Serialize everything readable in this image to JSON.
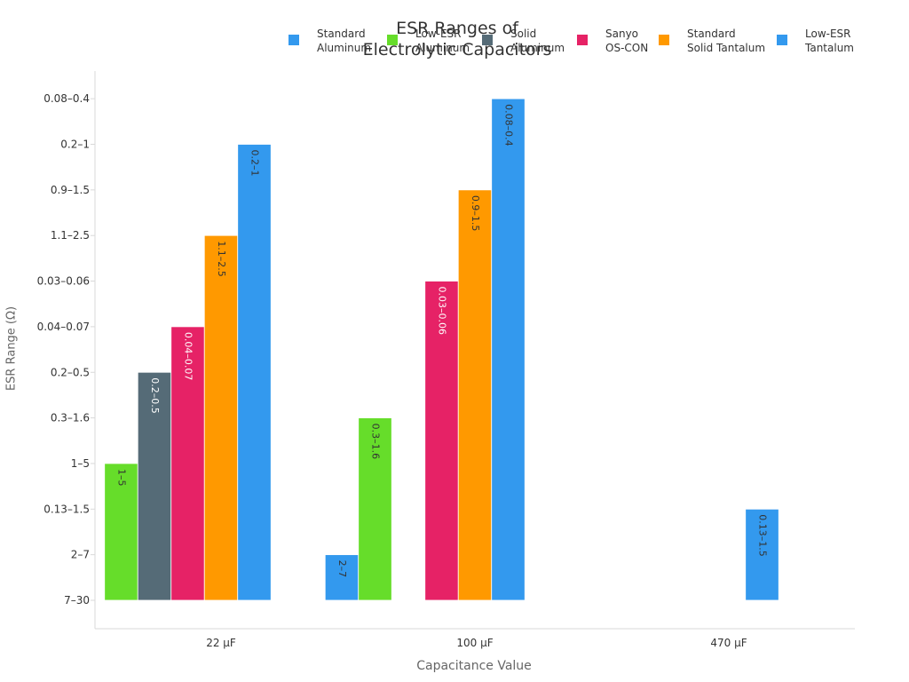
{
  "chart_data": {
    "type": "bar",
    "title": "ESR Ranges of\nElectrolytic Capacitors",
    "xlabel": "Capacitance Value",
    "ylabel": "ESR Range (Ω)",
    "categories": [
      "22 µF",
      "100 µF",
      "470 µF"
    ],
    "y_categories": [
      "7–30",
      "2–7",
      "0.13–1.5",
      "1–5",
      "0.3–1.6",
      "0.2–0.5",
      "0.04–0.07",
      "0.03–0.06",
      "1.1–2.5",
      "0.9–1.5",
      "0.2–1",
      "0.08–0.4"
    ],
    "grid": false,
    "legend_position": "top-right",
    "series": [
      {
        "name": "Standard\nAluminum",
        "color": "#3399ee",
        "values": [
          null,
          "2–7",
          null
        ]
      },
      {
        "name": "Low-ESR\nAluminum",
        "color": "#66dd2a",
        "values": [
          "1–5",
          "0.3–1.6",
          null
        ]
      },
      {
        "name": "Solid\nAluminum",
        "color": "#556b77",
        "values": [
          "0.2–0.5",
          null,
          null
        ]
      },
      {
        "name": "Sanyo\nOS-CON",
        "color": "#e62266",
        "values": [
          "0.04–0.07",
          "0.03–0.06",
          null
        ]
      },
      {
        "name": "Standard\nSolid Tantalum",
        "color": "#ff9900",
        "values": [
          "1.1–2.5",
          "0.9–1.5",
          null
        ]
      },
      {
        "name": "Low-ESR\nTantalum",
        "color": "#3399ee",
        "values": [
          "0.2–1",
          "0.08–0.4",
          "0.13–1.5"
        ]
      }
    ]
  }
}
